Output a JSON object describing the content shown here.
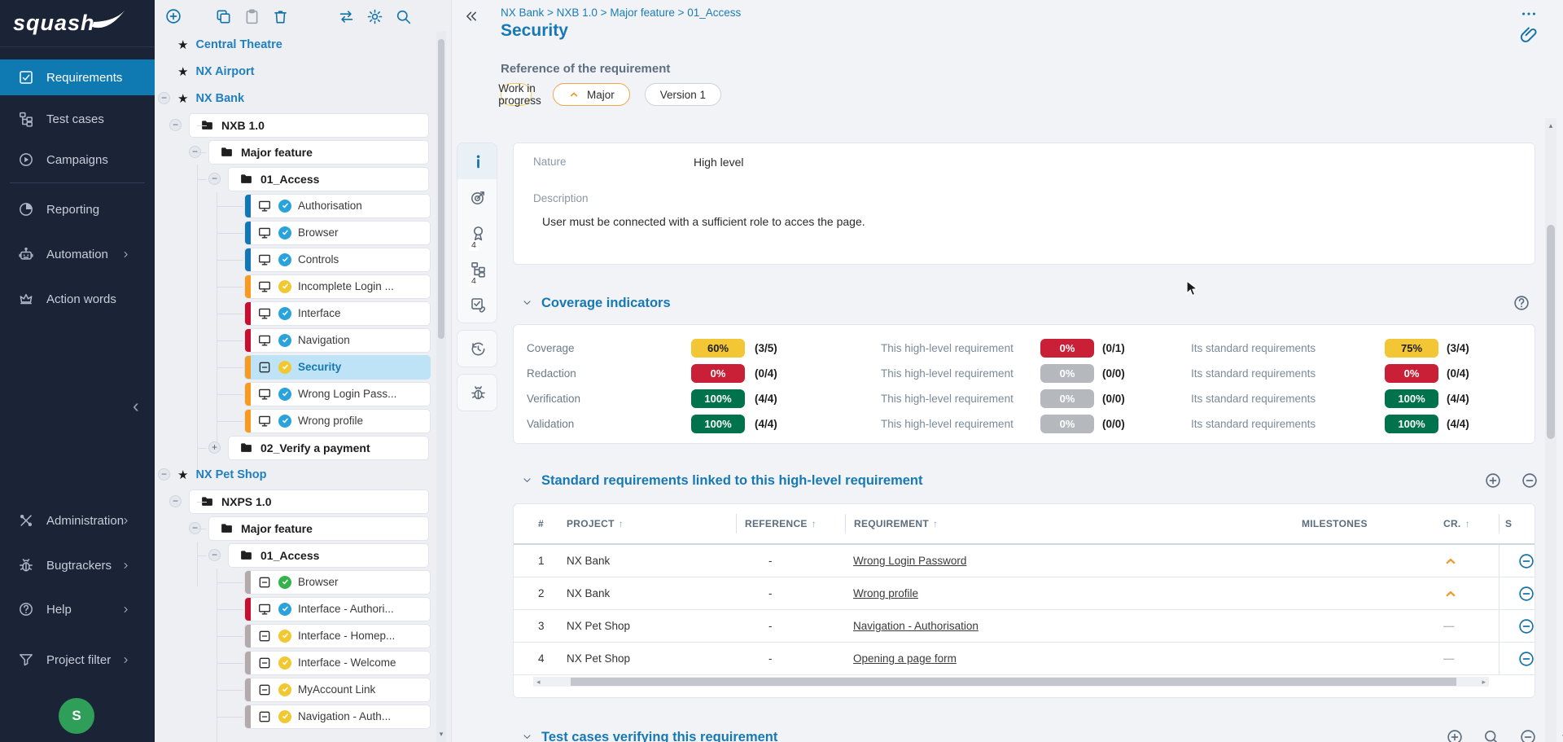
{
  "app": {
    "logo_text": "squash"
  },
  "colors": {
    "accent_blue": "#1372a8",
    "navy_sidebar": "#1b2337",
    "selected_nav": "#0e7ab1",
    "selected_tree_row": "#bfe3f6",
    "badge_yellow": "#f3c635",
    "badge_red": "#c91f37",
    "badge_green": "#00734d",
    "badge_gray": "#b5b9bd",
    "bar_blue": "#1178b5",
    "bar_orange": "#f79a1f",
    "bar_red": "#c8102e",
    "bar_gray": "#b3abab",
    "status_blue": "#2aa3dc",
    "status_yellow": "#f2c832",
    "status_green": "#35b34a",
    "caret_orange": "#f2992e",
    "avatar_green": "#2f9e58",
    "title_blue": "#1878b6"
  },
  "sidebar": {
    "items": [
      {
        "icon": "checkbox-check",
        "label": "Requirements",
        "selected": true,
        "chevron": false
      },
      {
        "icon": "hierarchy",
        "label": "Test cases",
        "selected": false,
        "chevron": false
      },
      {
        "icon": "play-circle",
        "label": "Campaigns",
        "selected": false,
        "chevron": false
      },
      {
        "icon": "pie-chart",
        "label": "Reporting",
        "selected": false,
        "chevron": false
      },
      {
        "icon": "robot",
        "label": "Automation",
        "selected": false,
        "chevron": true
      },
      {
        "icon": "crown",
        "label": "Action words",
        "selected": false,
        "chevron": false
      }
    ],
    "bottom_items": [
      {
        "icon": "tools",
        "label": "Administration",
        "selected": false,
        "chevron": true
      },
      {
        "icon": "bug",
        "label": "Bugtrackers",
        "selected": false,
        "chevron": true
      },
      {
        "icon": "help-circle",
        "label": "Help",
        "selected": false,
        "chevron": true
      },
      {
        "icon": "funnel",
        "label": "Project filter",
        "selected": false,
        "chevron": true
      }
    ],
    "avatar_text": "S"
  },
  "tree": {
    "toolbar": {
      "left": [
        {
          "icon": "plus-circle",
          "name": "create-button"
        }
      ],
      "clipboard": [
        {
          "icon": "copy",
          "name": "copy-button"
        },
        {
          "icon": "clipboard",
          "name": "paste-button",
          "disabled": true
        },
        {
          "icon": "trash",
          "name": "delete-button"
        }
      ],
      "right": [
        {
          "icon": "swap-horizontal",
          "name": "transfer-button"
        },
        {
          "icon": "gear",
          "name": "settings-button"
        },
        {
          "icon": "search",
          "name": "search-button"
        }
      ]
    },
    "nodes": [
      {
        "kind": "project",
        "label": "Central Theatre",
        "expander": null
      },
      {
        "kind": "project",
        "label": "NX Airport",
        "expander": null
      },
      {
        "kind": "project",
        "label": "NX Bank",
        "expander": "-"
      },
      {
        "kind": "folder",
        "depth": 1,
        "label": "NXB 1.0",
        "expander": "-"
      },
      {
        "kind": "folder",
        "depth": 2,
        "label": "Major feature",
        "expander": "-"
      },
      {
        "kind": "folder",
        "depth": 3,
        "label": "01_Access",
        "expander": "-"
      },
      {
        "kind": "leaf",
        "label": "Authorisation",
        "bar": "blue",
        "icon": "monitor",
        "status": "blue"
      },
      {
        "kind": "leaf",
        "label": "Browser",
        "bar": "blue",
        "icon": "monitor",
        "status": "blue"
      },
      {
        "kind": "leaf",
        "label": "Controls",
        "bar": "blue",
        "icon": "monitor",
        "status": "blue"
      },
      {
        "kind": "leaf",
        "label": "Incomplete Login ...",
        "bar": "orange",
        "icon": "monitor",
        "status": "yellow"
      },
      {
        "kind": "leaf",
        "label": "Interface",
        "bar": "red",
        "icon": "monitor",
        "status": "blue"
      },
      {
        "kind": "leaf",
        "label": "Navigation",
        "bar": "red",
        "icon": "monitor",
        "status": "blue"
      },
      {
        "kind": "leaf",
        "label": "Security",
        "bar": "orange",
        "icon": "square-minus",
        "status": "yellow",
        "selected": true
      },
      {
        "kind": "leaf",
        "label": "Wrong Login Pass...",
        "bar": "orange",
        "icon": "monitor",
        "status": "blue"
      },
      {
        "kind": "leaf",
        "label": "Wrong profile",
        "bar": "orange",
        "icon": "monitor",
        "status": "blue"
      },
      {
        "kind": "folder",
        "depth": 3,
        "label": "02_Verify a payment",
        "expander": "+"
      },
      {
        "kind": "project",
        "label": "NX Pet Shop",
        "expander": "-"
      },
      {
        "kind": "folder",
        "depth": 1,
        "label": "NXPS 1.0",
        "expander": "-"
      },
      {
        "kind": "folder",
        "depth": 2,
        "label": "Major feature",
        "expander": "-"
      },
      {
        "kind": "folder",
        "depth": 3,
        "label": "01_Access",
        "expander": "-"
      },
      {
        "kind": "leaf",
        "label": "Browser",
        "bar": "gray",
        "icon": "square-minus",
        "status": "green"
      },
      {
        "kind": "leaf",
        "label": "Interface - Authori...",
        "bar": "red",
        "icon": "monitor",
        "status": "blue"
      },
      {
        "kind": "leaf",
        "label": "Interface - Homep...",
        "bar": "gray",
        "icon": "square-minus",
        "status": "yellow"
      },
      {
        "kind": "leaf",
        "label": "Interface - Welcome",
        "bar": "gray",
        "icon": "square-minus",
        "status": "yellow"
      },
      {
        "kind": "leaf",
        "label": "MyAccount Link",
        "bar": "gray",
        "icon": "square-minus",
        "status": "yellow"
      },
      {
        "kind": "leaf",
        "label": "Navigation - Auth...",
        "bar": "gray",
        "icon": "square-minus",
        "status": "yellow"
      }
    ]
  },
  "main": {
    "breadcrumb": "NX Bank > NXB 1.0 > Major feature > 01_Access",
    "title": "Security",
    "ref_label": "Reference of the requirement",
    "chips": [
      {
        "type": "status",
        "label": "Work in progress",
        "marker": "dot"
      },
      {
        "type": "criticality",
        "label": "Major",
        "marker": "caret-up-bold"
      },
      {
        "type": "version",
        "label": "Version 1",
        "marker": null
      }
    ],
    "rail_groups": [
      [
        {
          "icon": "info",
          "selected": true
        },
        {
          "icon": "target"
        },
        {
          "icon": "award",
          "badge": "4"
        },
        {
          "icon": "hierarchy",
          "badge": "4"
        },
        {
          "icon": "verify-link"
        }
      ],
      [
        {
          "icon": "history"
        }
      ],
      [
        {
          "icon": "bug"
        }
      ]
    ],
    "info": {
      "nature_label": "Nature",
      "nature_value": "High level",
      "description_label": "Description",
      "description_text": "User must be connected with a sufficient role to acces the page."
    },
    "coverage": {
      "title": "Coverage indicators",
      "mid_label": "This high-level requirement",
      "right_label": "Its standard requirements",
      "rows": [
        {
          "label": "Coverage",
          "self": {
            "pct": "60%",
            "count": "(3/5)",
            "color": "yellow"
          },
          "mid": {
            "pct": "0%",
            "count": "(0/1)",
            "color": "red"
          },
          "right": {
            "pct": "75%",
            "count": "(3/4)",
            "color": "yellow"
          }
        },
        {
          "label": "Redaction",
          "self": {
            "pct": "0%",
            "count": "(0/4)",
            "color": "red"
          },
          "mid": {
            "pct": "0%",
            "count": "(0/0)",
            "color": "gray"
          },
          "right": {
            "pct": "0%",
            "count": "(0/4)",
            "color": "red"
          }
        },
        {
          "label": "Verification",
          "self": {
            "pct": "100%",
            "count": "(4/4)",
            "color": "green"
          },
          "mid": {
            "pct": "0%",
            "count": "(0/0)",
            "color": "gray"
          },
          "right": {
            "pct": "100%",
            "count": "(4/4)",
            "color": "green"
          }
        },
        {
          "label": "Validation",
          "self": {
            "pct": "100%",
            "count": "(4/4)",
            "color": "green"
          },
          "mid": {
            "pct": "0%",
            "count": "(0/0)",
            "color": "gray"
          },
          "right": {
            "pct": "100%",
            "count": "(4/4)",
            "color": "green"
          }
        }
      ]
    },
    "linked": {
      "title": "Standard requirements linked to this high-level requirement",
      "columns": [
        {
          "label": "#",
          "sort": false
        },
        {
          "label": "PROJECT",
          "sort": true
        },
        {
          "label": "REFERENCE",
          "sort": true
        },
        {
          "label": "REQUIREMENT",
          "sort": true
        },
        {
          "label": "MILESTONES",
          "sort": false
        },
        {
          "label": "CR.",
          "sort": true
        },
        {
          "label": "S",
          "sort": false
        }
      ],
      "rows": [
        {
          "num": "1",
          "project": "NX Bank",
          "reference": "-",
          "requirement": "Wrong Login Password",
          "milestones": "",
          "cr": "caret",
          "status_color": "blue"
        },
        {
          "num": "2",
          "project": "NX Bank",
          "reference": "-",
          "requirement": "Wrong profile",
          "milestones": "",
          "cr": "caret",
          "status_color": "blue"
        },
        {
          "num": "3",
          "project": "NX Pet Shop",
          "reference": "-",
          "requirement": "Navigation - Authorisation",
          "milestones": "",
          "cr": "dash",
          "status_color": "yellow"
        },
        {
          "num": "4",
          "project": "NX Pet Shop",
          "reference": "-",
          "requirement": "Opening a page form",
          "milestones": "",
          "cr": "dash",
          "status_color": "yellow"
        }
      ]
    },
    "test_cases": {
      "title": "Test cases verifying this requirement"
    }
  }
}
